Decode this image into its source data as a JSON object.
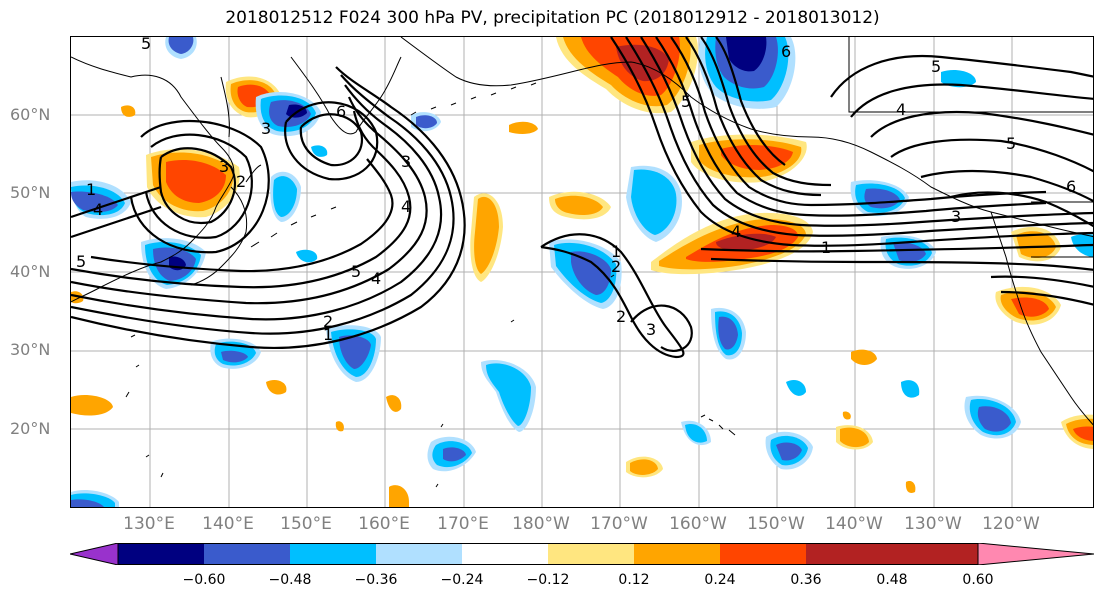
{
  "title": "2018012512 F024 300 hPa PV, precipitation PC (2018012912 - 2018013012)",
  "lat_labels": [
    "60°N",
    "50°N",
    "40°N",
    "30°N",
    "20°N"
  ],
  "lon_labels": [
    "130°E",
    "140°E",
    "150°E",
    "160°E",
    "170°E",
    "180°W",
    "170°W",
    "160°W",
    "150°W",
    "140°W",
    "130°W",
    "120°W"
  ],
  "colorbar": {
    "ticks": [
      "−0.60",
      "−0.48",
      "−0.36",
      "−0.24",
      "−0.12",
      "0.12",
      "0.24",
      "0.36",
      "0.48",
      "0.60"
    ],
    "colors": [
      "#9932cc",
      "#000080",
      "#3a5bcc",
      "#00bfff",
      "#b0e0ff",
      "#ffffff",
      "#ffe680",
      "#ffa500",
      "#ff4500",
      "#b22222",
      "#ff88b0"
    ]
  },
  "contour_labels": [
    "1",
    "2",
    "3",
    "4",
    "5",
    "6",
    "4",
    "5",
    "3",
    "2",
    "1",
    "3",
    "4",
    "5",
    "6",
    "5",
    "4",
    "3",
    "1",
    "2",
    "3",
    "5",
    "6",
    "4",
    "5",
    "2",
    "1"
  ]
}
